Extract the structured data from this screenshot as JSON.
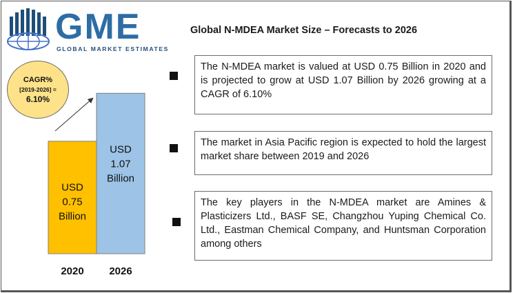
{
  "logo": {
    "name": "GME",
    "tagline": "GLOBAL MARKET ESTIMATES",
    "color_dark": "#1f4e79",
    "color_accent": "#4472c4"
  },
  "title": "Global N-MDEA Market Size – Forecasts to 2026",
  "cagr": {
    "label": "CAGR%",
    "period": "[2019-2026] =",
    "value": "6.10%",
    "color": "#fde28a"
  },
  "bars": [
    {
      "year": "2020",
      "label_lines": [
        "USD",
        "0.75",
        "Billion"
      ],
      "color": "#ffc000"
    },
    {
      "year": "2026",
      "label_lines": [
        "USD",
        "1.07",
        "Billion"
      ],
      "color": "#9dc3e6"
    }
  ],
  "chart_data": {
    "type": "bar",
    "categories": [
      "2020",
      "2026"
    ],
    "values": [
      0.75,
      1.07
    ],
    "title": "Global N-MDEA Market Size – Forecasts to 2026",
    "xlabel": "",
    "ylabel": "",
    "units": "USD Billion"
  },
  "points": [
    "The N-MDEA market is valued at USD 0.75 Billion in 2020 and is projected to grow at USD 1.07 Billion by 2026 growing at a CAGR of 6.10%",
    "The market in Asia Pacific region is expected to hold the largest market share between 2019 and 2026",
    "The key players in the N-MDEA market are Amines & Plasticizers Ltd., BASF SE, Changzhou Yuping Chemical Co. Ltd., Eastman Chemical Company, and Huntsman Corporation among others"
  ]
}
